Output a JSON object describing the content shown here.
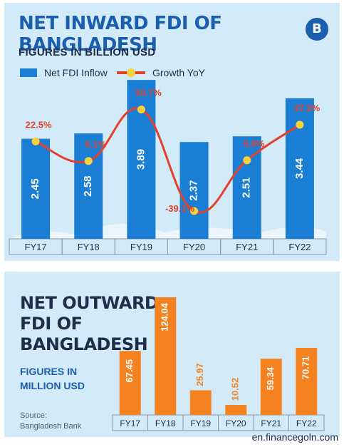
{
  "chart_data": [
    {
      "type": "bar+line",
      "title": "NET INWARD FDI OF BANGLADESH",
      "subtitle": "FIGURES IN BILLION USD",
      "categories": [
        "FY17",
        "FY18",
        "FY19",
        "FY20",
        "FY21",
        "FY22"
      ],
      "series": [
        {
          "name": "Net FDI Inflow",
          "type": "bar",
          "values": [
            2.45,
            2.58,
            3.89,
            2.37,
            2.51,
            3.44
          ],
          "color": "#1a7fd4"
        },
        {
          "name": "Growth YoY",
          "type": "line",
          "values": [
            22.5,
            5.1,
            50.7,
            -39.1,
            5.8,
            37.2
          ],
          "labels": [
            "22.5%",
            "5.1%",
            "50.7%",
            "-39.1%",
            "5.8%",
            "37.2%"
          ],
          "color": "#e5402a",
          "marker_color": "#f7d23c"
        }
      ],
      "legend": "top-left"
    },
    {
      "type": "bar",
      "title": "NET OUTWARD FDI OF BANGLADESH",
      "subtitle": "FIGURES IN MILLION USD",
      "categories": [
        "FY17",
        "FY18",
        "FY19",
        "FY20",
        "FY21",
        "FY22"
      ],
      "values": [
        67.45,
        124.04,
        25.97,
        10.52,
        59.34,
        70.71
      ],
      "labels": [
        "67.45",
        "124.04",
        "25.97",
        "10.52",
        "59.34",
        "70.71"
      ],
      "color": "#f58220"
    }
  ],
  "top": {
    "title": "NET INWARD FDI OF BANGLADESH",
    "subtitle": "FIGURES IN BILLION USD",
    "legend_fdi": "Net FDI Inflow",
    "legend_growth": "Growth YoY",
    "logo_letter": "B"
  },
  "bottom": {
    "title_line1": "NET OUTWARD",
    "title_line2": "FDI OF",
    "title_line3": "BANGLADESH",
    "subtitle_line1": "FIGURES IN",
    "subtitle_line2": "MILLION USD",
    "source_line1": "Source:",
    "source_line2": "Bangladesh Bank"
  },
  "credit": "en.financegoln.com"
}
